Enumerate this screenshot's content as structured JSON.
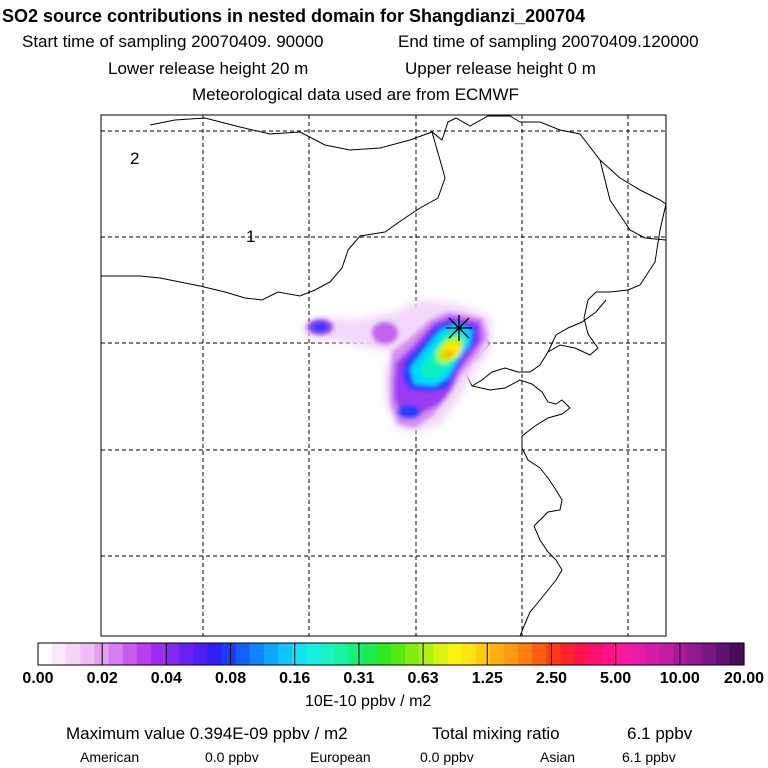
{
  "header": {
    "title": "SO2 source contributions in nested domain for Shangdianzi_200704",
    "start": "Start time of sampling 20070409. 90000",
    "end": "End time of sampling 20070409.120000",
    "lower": "Lower release height   20 m",
    "upper": "Upper release height    0 m",
    "met": "Meteorological data used are from ECMWF"
  },
  "map": {
    "labels": [
      "1",
      "2"
    ],
    "station_marker": "asterisk-icon",
    "plume_colors": [
      "#e6b8f5",
      "#b84df0",
      "#7a1df0",
      "#1e3cff",
      "#00c8ff",
      "#00f0c8",
      "#b4f500",
      "#ffe600",
      "#ffb300"
    ]
  },
  "legend": {
    "ticks": [
      "0.00",
      "0.02",
      "0.04",
      "0.08",
      "0.16",
      "0.31",
      "0.63",
      "1.25",
      "2.50",
      "5.00",
      "10.00",
      "20.00"
    ],
    "colors": [
      "#ffffff",
      "#fbe9fb",
      "#f6d4f8",
      "#efbdf5",
      "#e3a0f2",
      "#d77ef2",
      "#c95cf0",
      "#b83ef0",
      "#a02bf0",
      "#8426f2",
      "#6a22f4",
      "#4d1ef5",
      "#3020f8",
      "#1a3cff",
      "#1460ff",
      "#1284ff",
      "#10a6ff",
      "#10c6ff",
      "#12e2f8",
      "#16f0e0",
      "#18f4c4",
      "#18f4a0",
      "#18f078",
      "#1cec4c",
      "#30e820",
      "#5ae812",
      "#86ec10",
      "#b0f010",
      "#d8f410",
      "#f8f410",
      "#ffe410",
      "#ffcc10",
      "#ffb010",
      "#ff9a10",
      "#ff7e10",
      "#ff5e10",
      "#ff3c18",
      "#ff2030",
      "#ff1450",
      "#ff1070",
      "#ff148c",
      "#f8189e",
      "#e81aa6",
      "#d41ca8",
      "#c01ca4",
      "#a81a9c",
      "#901890",
      "#781682",
      "#601270",
      "#480e5a"
    ],
    "units": "10E-10 ppbv / m2"
  },
  "footer": {
    "max": "Maximum value  0.394E-09 ppbv / m2",
    "total_label": "Total mixing ratio",
    "total_value": "6.1 ppbv",
    "regions": [
      {
        "name": "American",
        "value": "0.0 ppbv"
      },
      {
        "name": "European",
        "value": "0.0 ppbv"
      },
      {
        "name": "Asian",
        "value": "6.1 ppbv"
      }
    ]
  }
}
